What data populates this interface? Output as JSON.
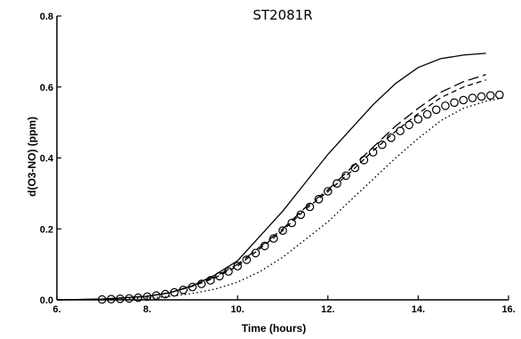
{
  "chart_data": {
    "type": "line",
    "title": "ST2081R",
    "xlabel": "Time (hours)",
    "ylabel": "d(O3-NO) (ppm)",
    "xlim": [
      6,
      16
    ],
    "ylim": [
      0,
      0.8
    ],
    "x_ticks": [
      "6.",
      "8.",
      "10.",
      "12.",
      "14.",
      "16."
    ],
    "y_ticks": [
      "0.0",
      "0.2",
      "0.4",
      "0.6",
      "0.8"
    ],
    "grid": false,
    "colors": {
      "line": "#000000",
      "background": "#ffffff"
    },
    "series": [
      {
        "style": "solid",
        "x": [
          6.0,
          7.0,
          8.0,
          8.5,
          9.0,
          9.5,
          10.0,
          10.5,
          11.0,
          11.5,
          12.0,
          12.5,
          13.0,
          13.5,
          14.0,
          14.5,
          15.0,
          15.5
        ],
        "y": [
          0.0,
          0.002,
          0.01,
          0.02,
          0.04,
          0.07,
          0.11,
          0.18,
          0.25,
          0.33,
          0.41,
          0.48,
          0.55,
          0.61,
          0.655,
          0.68,
          0.69,
          0.695
        ]
      },
      {
        "style": "long-dash",
        "x": [
          6.0,
          7.0,
          8.0,
          8.5,
          9.0,
          9.5,
          10.0,
          10.5,
          11.0,
          11.5,
          12.0,
          12.5,
          13.0,
          13.5,
          14.0,
          14.5,
          15.0,
          15.5
        ],
        "y": [
          0.0,
          0.002,
          0.01,
          0.02,
          0.04,
          0.065,
          0.1,
          0.15,
          0.2,
          0.26,
          0.31,
          0.37,
          0.43,
          0.49,
          0.54,
          0.585,
          0.615,
          0.635
        ]
      },
      {
        "style": "short-dash",
        "x": [
          6.0,
          7.0,
          8.0,
          8.5,
          9.0,
          9.5,
          10.0,
          10.5,
          11.0,
          11.5,
          12.0,
          12.5,
          13.0,
          13.5,
          14.0,
          14.5,
          15.0,
          15.5
        ],
        "y": [
          0.0,
          0.002,
          0.01,
          0.02,
          0.038,
          0.062,
          0.095,
          0.145,
          0.195,
          0.255,
          0.305,
          0.36,
          0.42,
          0.475,
          0.525,
          0.57,
          0.6,
          0.62
        ]
      },
      {
        "style": "dotted",
        "x": [
          6.0,
          7.0,
          8.0,
          8.5,
          9.0,
          9.5,
          10.0,
          10.5,
          11.0,
          11.5,
          12.0,
          12.5,
          13.0,
          13.5,
          14.0,
          14.5,
          15.0,
          15.5,
          15.9
        ],
        "y": [
          0.0,
          0.001,
          0.005,
          0.01,
          0.018,
          0.03,
          0.05,
          0.08,
          0.12,
          0.17,
          0.22,
          0.28,
          0.34,
          0.4,
          0.455,
          0.505,
          0.54,
          0.56,
          0.57
        ]
      },
      {
        "style": "markers",
        "marker": "circle",
        "x": [
          7.0,
          7.2,
          7.4,
          7.6,
          7.8,
          8.0,
          8.2,
          8.4,
          8.6,
          8.8,
          9.0,
          9.2,
          9.4,
          9.6,
          9.8,
          10.0,
          10.2,
          10.4,
          10.6,
          10.8,
          11.0,
          11.2,
          11.4,
          11.6,
          11.8,
          12.0,
          12.2,
          12.4,
          12.6,
          12.8,
          13.0,
          13.2,
          13.4,
          13.6,
          13.8,
          14.0,
          14.2,
          14.4,
          14.6,
          14.8,
          15.0,
          15.2,
          15.4,
          15.6,
          15.8
        ],
        "y": [
          0.001,
          0.002,
          0.003,
          0.004,
          0.006,
          0.009,
          0.012,
          0.016,
          0.021,
          0.028,
          0.036,
          0.045,
          0.055,
          0.067,
          0.08,
          0.095,
          0.113,
          0.132,
          0.152,
          0.173,
          0.195,
          0.217,
          0.24,
          0.262,
          0.284,
          0.306,
          0.328,
          0.35,
          0.372,
          0.394,
          0.416,
          0.437,
          0.457,
          0.476,
          0.493,
          0.509,
          0.523,
          0.536,
          0.547,
          0.556,
          0.563,
          0.569,
          0.573,
          0.576,
          0.578
        ]
      }
    ]
  }
}
